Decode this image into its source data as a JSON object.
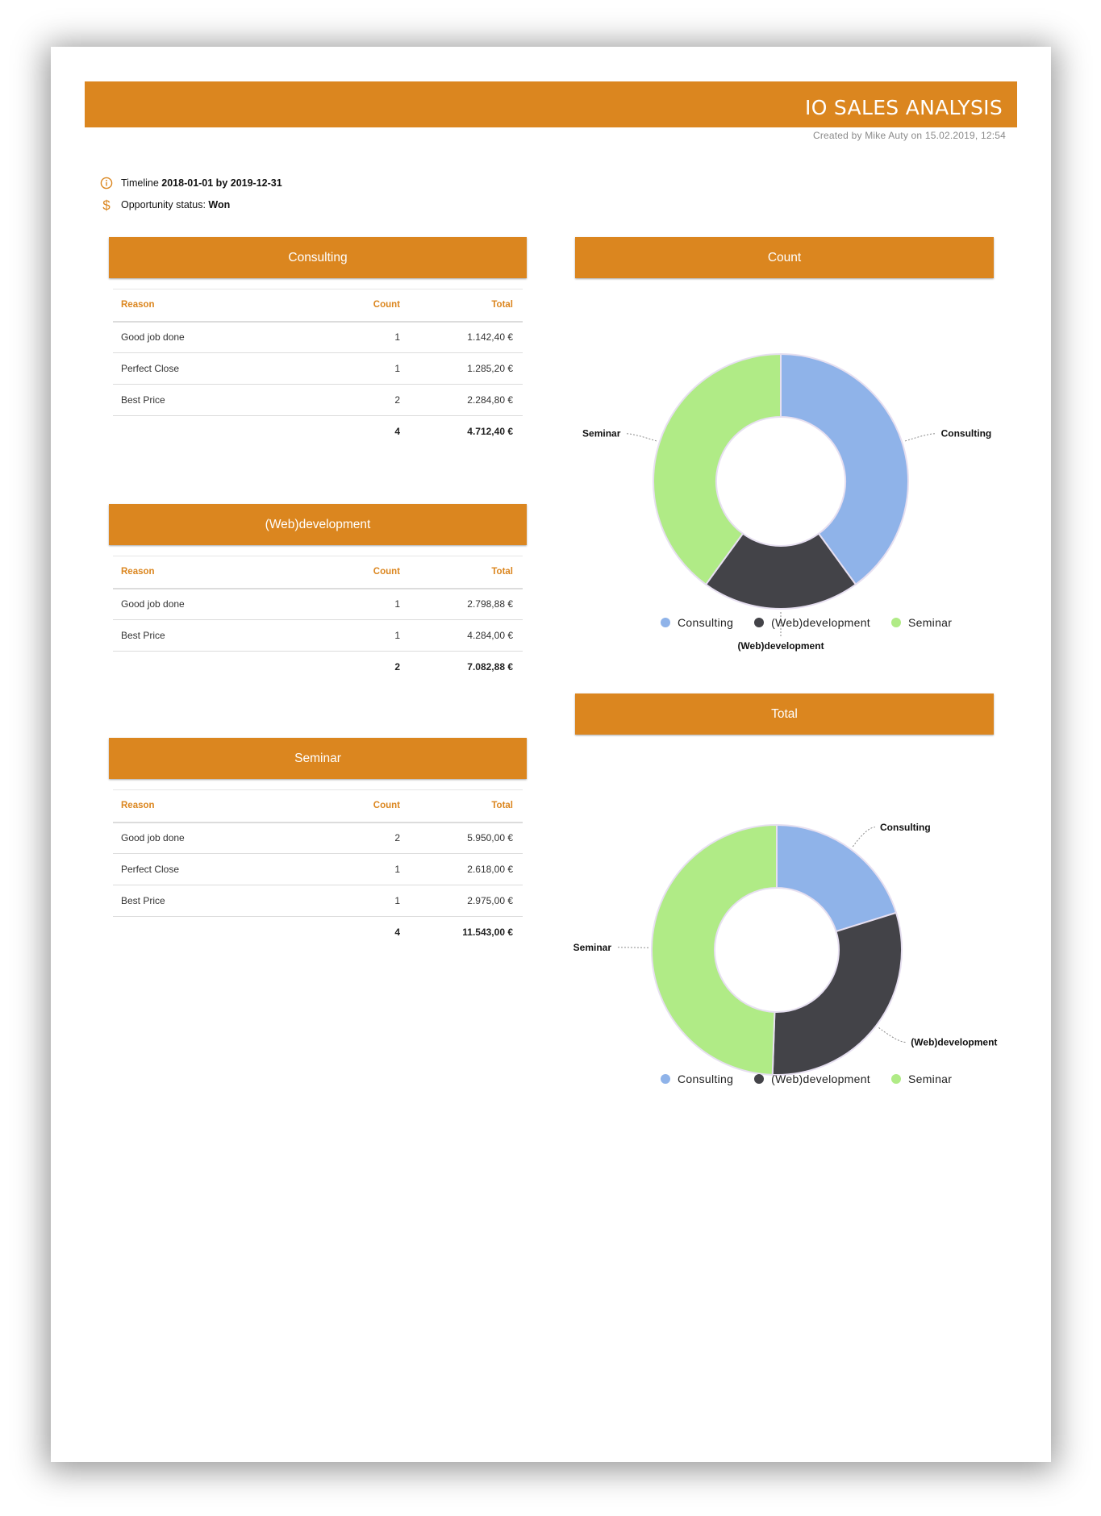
{
  "header": {
    "title": "IO SALES ANALYSIS",
    "subtitle": "Created by Mike Auty on 15.02.2019, 12:54"
  },
  "filters": {
    "timeline_label": "Timeline",
    "timeline_value": "2018-01-01 by 2019-12-31",
    "status_label": "Opportunity status:",
    "status_value": "Won"
  },
  "sections": [
    {
      "title": "Consulting",
      "columns": [
        "Reason",
        "Count",
        "Total"
      ],
      "rows": [
        [
          "Good job done",
          "1",
          "1.142,40 €"
        ],
        [
          "Perfect Close",
          "1",
          "1.285,20 €"
        ],
        [
          "Best Price",
          "2",
          "2.284,80 €"
        ]
      ],
      "total_count": "4",
      "total_sum": "4.712,40 €"
    },
    {
      "title": "(Web)development",
      "columns": [
        "Reason",
        "Count",
        "Total"
      ],
      "rows": [
        [
          "Good job done",
          "1",
          "2.798,88 €"
        ],
        [
          "Best Price",
          "1",
          "4.284,00 €"
        ]
      ],
      "total_count": "2",
      "total_sum": "7.082,88 €"
    },
    {
      "title": "Seminar",
      "columns": [
        "Reason",
        "Count",
        "Total"
      ],
      "rows": [
        [
          "Good job done",
          "2",
          "5.950,00 €"
        ],
        [
          "Perfect Close",
          "1",
          "2.618,00 €"
        ],
        [
          "Best Price",
          "1",
          "2.975,00 €"
        ]
      ],
      "total_count": "4",
      "total_sum": "11.543,00 €"
    }
  ],
  "colors": {
    "accent": "#db861f",
    "consulting": "#8fb3e9",
    "webdevelopment": "#434348",
    "seminar": "#b0eb86"
  },
  "chart_data": [
    {
      "type": "pie",
      "title": "Count",
      "categories": [
        "Consulting",
        "(Web)development",
        "Seminar"
      ],
      "values": [
        4,
        2,
        4
      ],
      "colors": [
        "#8fb3e9",
        "#434348",
        "#b0eb86"
      ],
      "donut": true,
      "legend": "bottom"
    },
    {
      "type": "pie",
      "title": "Total",
      "categories": [
        "Consulting",
        "(Web)development",
        "Seminar"
      ],
      "values": [
        4712.4,
        7082.88,
        11543.0
      ],
      "colors": [
        "#8fb3e9",
        "#434348",
        "#b0eb86"
      ],
      "donut": true,
      "legend": "bottom"
    }
  ]
}
